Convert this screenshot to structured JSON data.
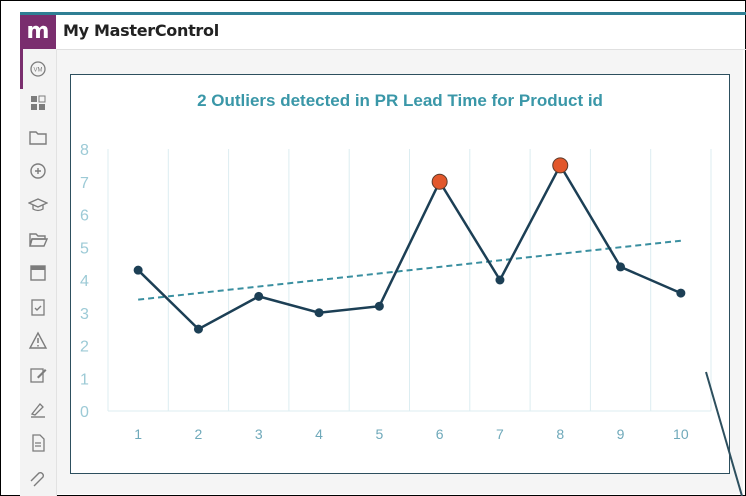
{
  "app": {
    "title": "My MasterControl",
    "logo_text": "m",
    "brand_color": "#7a2e6e",
    "accent_color": "#2f7f94"
  },
  "sidebar": {
    "items": [
      {
        "icon": "mastercontrol-circle-icon"
      },
      {
        "icon": "dashboard-icon"
      },
      {
        "icon": "folder-icon"
      },
      {
        "icon": "refresh-plus-icon"
      },
      {
        "icon": "graduation-cap-icon"
      },
      {
        "icon": "folder-open-icon"
      },
      {
        "icon": "calendar-icon"
      },
      {
        "icon": "clipboard-check-icon"
      },
      {
        "icon": "warning-icon"
      },
      {
        "icon": "edit-icon"
      },
      {
        "icon": "signature-icon"
      },
      {
        "icon": "document-icon"
      },
      {
        "icon": "attachment-icon"
      }
    ]
  },
  "chart_data": {
    "type": "line",
    "title": "2 Outliers detected in PR Lead Time for Product id",
    "xlabel": "",
    "ylabel": "",
    "categories": [
      "1",
      "2",
      "3",
      "4",
      "5",
      "6",
      "7",
      "8",
      "9",
      "10"
    ],
    "series": [
      {
        "values": [
          4.3,
          2.5,
          3.5,
          3.0,
          3.2,
          7.0,
          4.0,
          7.5,
          4.4,
          3.6
        ],
        "color": "#1c3f55",
        "outliers": [
          6,
          8
        ],
        "outlier_color": "#e2572b"
      }
    ],
    "trendline": {
      "start": 3.4,
      "end": 5.2,
      "color": "#3a8fa0",
      "style": "dashed"
    },
    "ylim": [
      0,
      8
    ],
    "yticks": [
      "0",
      "1",
      "2",
      "3",
      "4",
      "5",
      "6",
      "7",
      "8"
    ],
    "grid": "vertical",
    "legend": "none"
  }
}
